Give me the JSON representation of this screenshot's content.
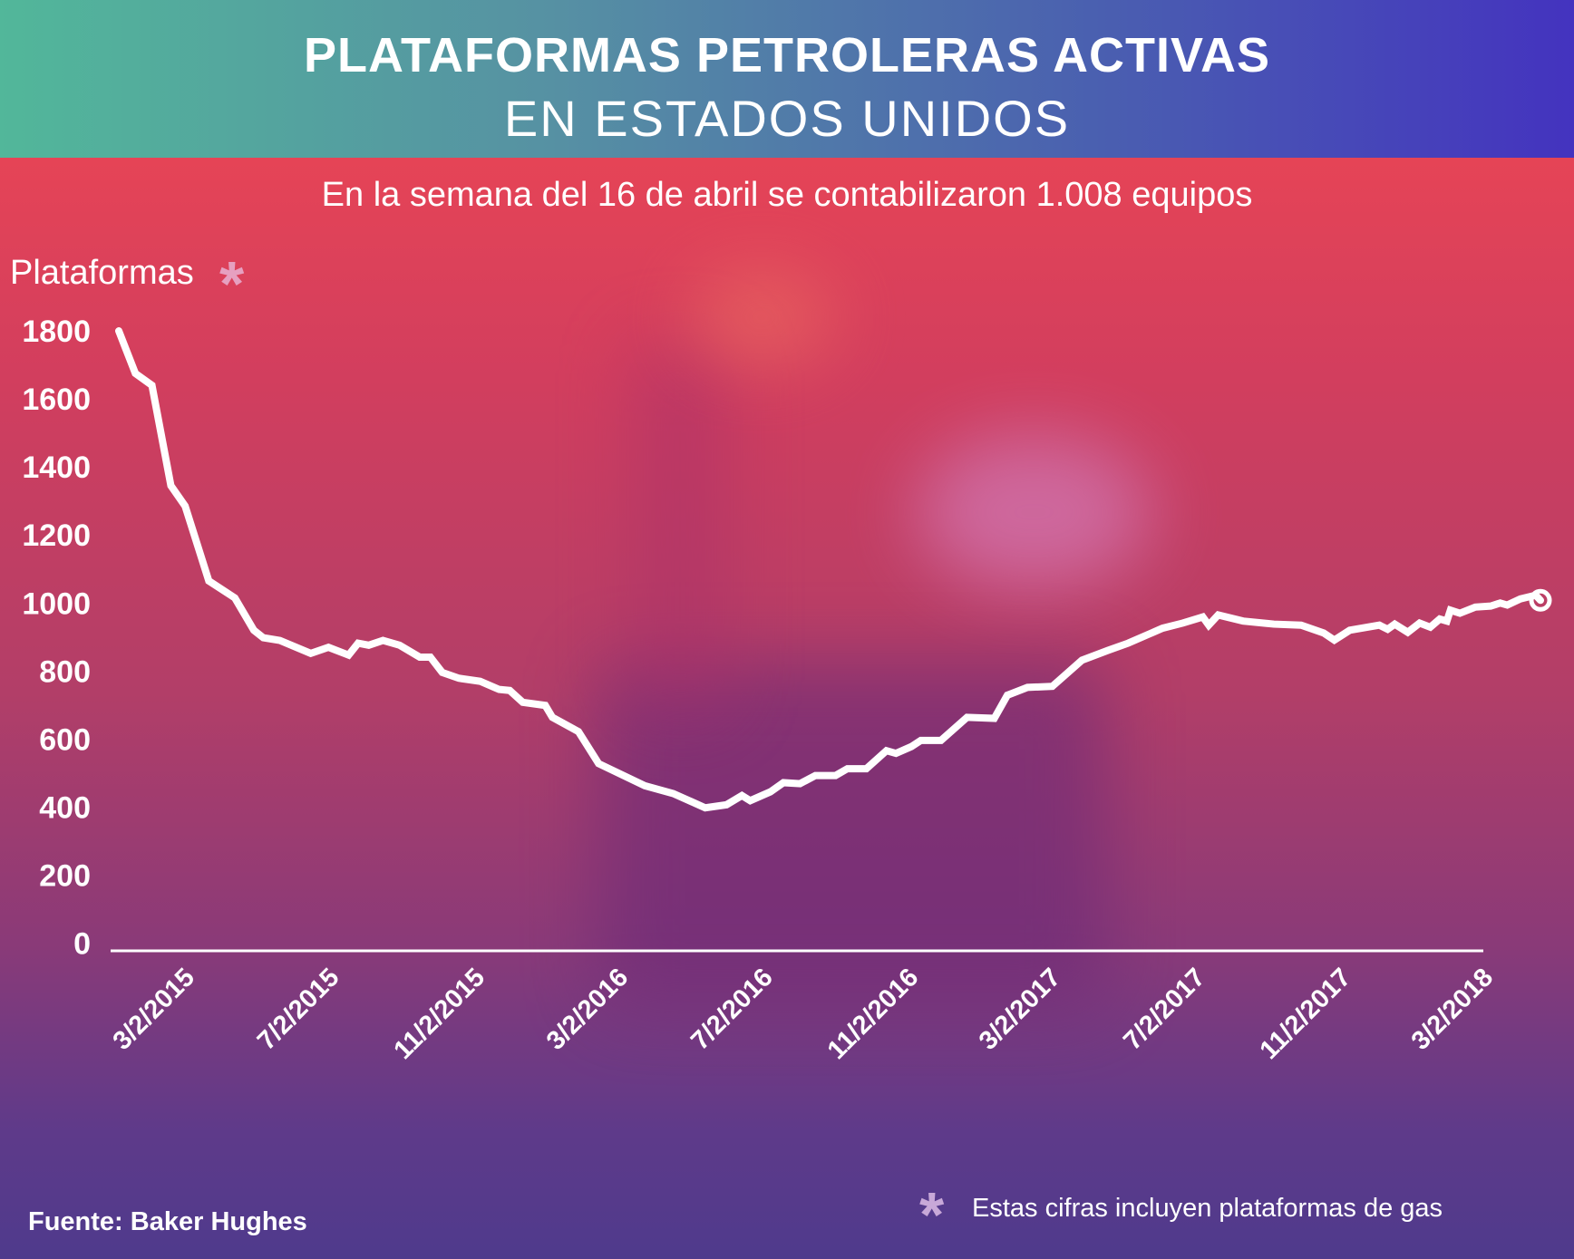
{
  "header": {
    "title_line1": "PLATAFORMAS PETROLERAS ACTIVAS",
    "title_line2": "EN ESTADOS UNIDOS"
  },
  "subtitle": "En la semana del 16 de abril se contabilizaron 1.008 equipos",
  "footer": {
    "source": "Fuente: Baker Hughes",
    "note": "Estas cifras incluyen plataformas de gas",
    "asterisk": "*"
  },
  "colors": {
    "line": "#ffffff",
    "header_left": "#52b79a",
    "header_right": "#4433bf",
    "asterisk": "#e6a0c0"
  },
  "chart_data": {
    "type": "line",
    "title": "PLATAFORMAS PETROLERAS ACTIVAS EN ESTADOS UNIDOS",
    "ylabel": "Plataformas",
    "xlabel": "",
    "ylim": [
      0,
      1800
    ],
    "yticks": [
      0,
      200,
      400,
      600,
      800,
      1000,
      1200,
      1400,
      1600,
      1800
    ],
    "xticks": [
      "3/2/2015",
      "7/2/2015",
      "11/2/2015",
      "3/2/2016",
      "7/2/2016",
      "11/2/2016",
      "3/2/2017",
      "7/2/2017",
      "11/2/2017",
      "3/2/2018"
    ],
    "grid": false,
    "series": [
      {
        "x": [
          "2015-01-02",
          "2015-01-16",
          "2015-01-30",
          "2015-02-15",
          "2015-02-27",
          "2015-03-19",
          "2015-04-10",
          "2015-04-26",
          "2015-05-04",
          "2015-05-18",
          "2015-06-13",
          "2015-06-28",
          "2015-07-15",
          "2015-07-23",
          "2015-08-01",
          "2015-08-13",
          "2015-08-27",
          "2015-09-13",
          "2015-09-22",
          "2015-10-02",
          "2015-10-16",
          "2015-11-03",
          "2015-11-19",
          "2015-11-28",
          "2015-12-09",
          "2015-12-28",
          "2016-01-03",
          "2016-01-25",
          "2016-02-11",
          "2016-03-21",
          "2016-04-14",
          "2016-05-11",
          "2016-05-29",
          "2016-06-11",
          "2016-06-18",
          "2016-07-05",
          "2016-07-16",
          "2016-07-30",
          "2016-08-12",
          "2016-08-29",
          "2016-09-08",
          "2016-09-24",
          "2016-10-11",
          "2016-10-19",
          "2016-11-01",
          "2016-11-09",
          "2016-11-26",
          "2016-12-18",
          "2017-01-10",
          "2017-01-21",
          "2017-02-07",
          "2017-02-28",
          "2017-03-25",
          "2017-04-16",
          "2017-05-03",
          "2017-06-01",
          "2017-06-18",
          "2017-07-05",
          "2017-07-10",
          "2017-07-18",
          "2017-08-08",
          "2017-09-03",
          "2017-09-26",
          "2017-10-15",
          "2017-10-24",
          "2017-11-06",
          "2017-12-01",
          "2017-12-08",
          "2017-12-14",
          "2017-12-25",
          "2018-01-04",
          "2018-01-13",
          "2018-01-21",
          "2018-01-27",
          "2018-01-30",
          "2018-02-07",
          "2018-02-20",
          "2018-03-05",
          "2018-03-13",
          "2018-03-19",
          "2018-03-30",
          "2018-04-12",
          "2018-04-16"
        ],
        "y": [
          1800,
          1675,
          1640,
          1345,
          1285,
          1065,
          1015,
          920,
          898,
          890,
          852,
          870,
          847,
          882,
          876,
          890,
          876,
          841,
          841,
          796,
          779,
          770,
          746,
          743,
          708,
          699,
          664,
          622,
          528,
          463,
          440,
          398,
          407,
          434,
          419,
          445,
          472,
          469,
          493,
          493,
          513,
          513,
          566,
          558,
          578,
          596,
          596,
          664,
          661,
          729,
          752,
          755,
          832,
          861,
          882,
          926,
          941,
          959,
          935,
          965,
          947,
          938,
          935,
          912,
          891,
          920,
          935,
          923,
          938,
          914,
          941,
          929,
          953,
          947,
          979,
          970,
          988,
          991,
          1000,
          994,
          1012,
          1023,
          1008
        ]
      }
    ],
    "last_point_marker": "open-circle"
  }
}
